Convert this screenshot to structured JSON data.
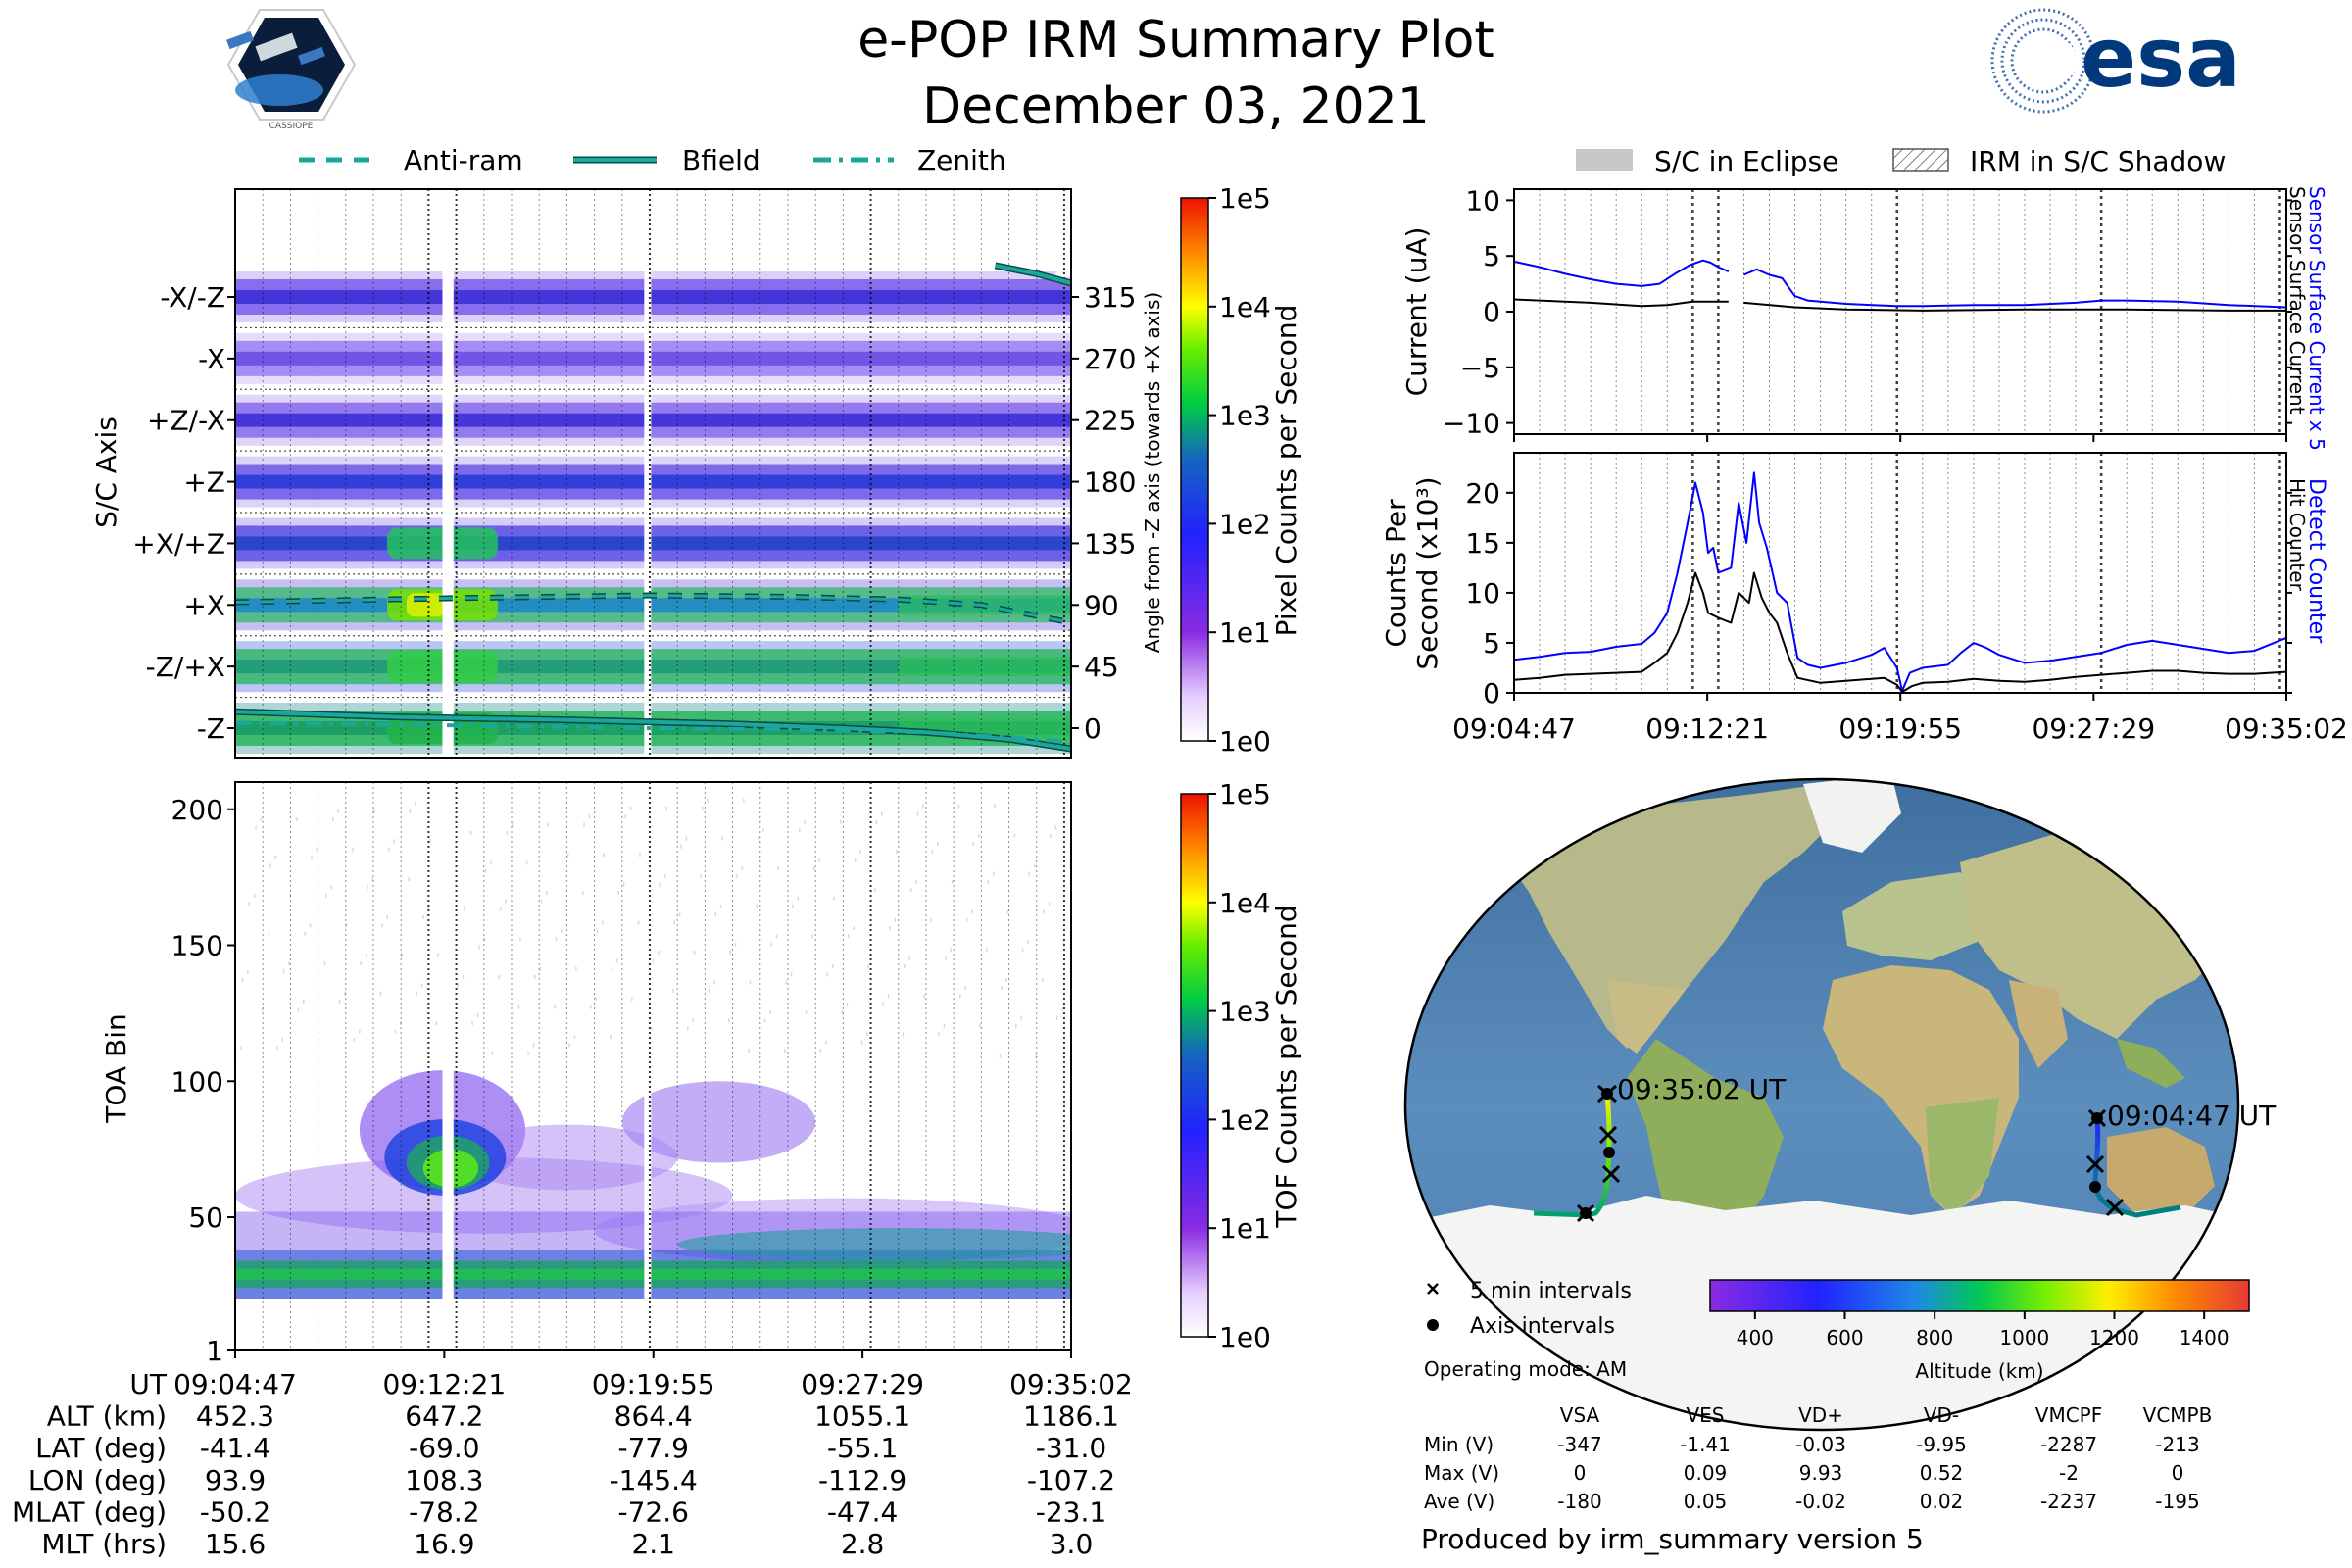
{
  "header": {
    "title": "e-POP IRM Summary Plot",
    "date": "December 03, 2021",
    "esa_logo_text": "esa",
    "mission_logo_text": "CASSIOPE"
  },
  "colors": {
    "anti_ram": "#1aa79c",
    "bfield": "#1aa79c",
    "zenith": "#1aa79c",
    "sensor_current": "#0000ff",
    "hit_counter": "#000000",
    "eclipse": "#c8c8c8"
  },
  "top_legend": [
    {
      "label": "Anti-ram",
      "style": "dashed"
    },
    {
      "label": "Bfield",
      "style": "solid"
    },
    {
      "label": "Zenith",
      "style": "dashdot"
    }
  ],
  "right_legend": [
    {
      "label": "S/C in Eclipse",
      "style": "solid-gray"
    },
    {
      "label": "IRM in S/C Shadow",
      "style": "hatched"
    }
  ],
  "time_ticks": [
    "09:04:47",
    "09:12:21",
    "09:19:55",
    "09:27:29",
    "09:35:02"
  ],
  "chart_data": [
    {
      "id": "pixel",
      "type": "heatmap",
      "ylabel": "S/C Axis",
      "ylabel_right": "Angle from -Z axis (towards +X axis)",
      "axis_labels": [
        "-X/-Z",
        "-X",
        "+Z/-X",
        "+Z",
        "+X/+Z",
        "+X",
        "-Z/+X",
        "-Z"
      ],
      "angle_ticks": [
        "315",
        "270",
        "225",
        "180",
        "135",
        "90",
        "45",
        "0"
      ],
      "colorbar": {
        "label": "Pixel Counts per Second",
        "ticks": [
          "1e5",
          "1e4",
          "1e3",
          "1e2",
          "1e1",
          "1e0"
        ]
      },
      "anti_ram_deg": [
        [
          0,
          92
        ],
        [
          8,
          95
        ],
        [
          15,
          97
        ],
        [
          20,
          96
        ],
        [
          24,
          94
        ],
        [
          27,
          90
        ],
        [
          30,
          78
        ],
        [
          30.25,
          72
        ]
      ],
      "bfield_deg": [
        [
          0,
          12
        ],
        [
          6,
          8
        ],
        [
          12,
          6
        ],
        [
          18,
          3
        ],
        [
          22,
          0
        ],
        [
          25,
          -3
        ],
        [
          28,
          -8
        ],
        [
          30.25,
          -15
        ]
      ],
      "zenith_deg": [
        [
          0,
          4
        ],
        [
          8,
          2
        ],
        [
          15,
          0
        ],
        [
          20,
          -1
        ],
        [
          25,
          -3
        ],
        [
          29,
          -8
        ],
        [
          30.25,
          -10
        ]
      ],
      "bfield_upper_deg": [
        [
          27.5,
          338
        ],
        [
          29,
          332
        ],
        [
          30.25,
          325
        ]
      ]
    },
    {
      "id": "toa",
      "type": "heatmap",
      "ylabel": "TOA Bin",
      "ylim": [
        1,
        210
      ],
      "yticks": [
        "200",
        "150",
        "100",
        "50",
        "1"
      ],
      "colorbar": {
        "label": "TOF Counts per Second",
        "ticks": [
          "1e5",
          "1e4",
          "1e3",
          "1e2",
          "1e1",
          "1e0"
        ]
      }
    },
    {
      "id": "current",
      "type": "line",
      "ylabel": "Current (uA)",
      "ylim": [
        -11,
        11
      ],
      "yticks": [
        "10",
        "5",
        "0",
        "−5",
        "−10"
      ],
      "right_labels": [
        "Sensor Surface Current x 5",
        "Sensor Surface Current"
      ],
      "series": [
        {
          "name": "Sensor Surface Current x 5",
          "points": [
            [
              0,
              4.5
            ],
            [
              1,
              4.0
            ],
            [
              2,
              3.4
            ],
            [
              3,
              2.9
            ],
            [
              4,
              2.5
            ],
            [
              5,
              2.3
            ],
            [
              5.7,
              2.5
            ],
            [
              6.3,
              3.4
            ],
            [
              6.9,
              4.2
            ],
            [
              7.4,
              4.6
            ],
            [
              7.7,
              4.4
            ],
            [
              8.0,
              4.0
            ],
            [
              8.4,
              3.6
            ],
            [
              8.6,
              null
            ],
            [
              9.0,
              3.3
            ],
            [
              9.5,
              3.8
            ],
            [
              10.0,
              3.3
            ],
            [
              10.5,
              3.0
            ],
            [
              11.0,
              1.4
            ],
            [
              11.5,
              1.0
            ],
            [
              13,
              0.7
            ],
            [
              15,
              0.5
            ],
            [
              16,
              0.5
            ],
            [
              18,
              0.6
            ],
            [
              20,
              0.6
            ],
            [
              22,
              0.8
            ],
            [
              23,
              1.0
            ],
            [
              24,
              1.0
            ],
            [
              26,
              0.9
            ],
            [
              28,
              0.6
            ],
            [
              30.25,
              0.4
            ]
          ]
        },
        {
          "name": "Sensor Surface Current",
          "points": [
            [
              0,
              1.1
            ],
            [
              3,
              0.8
            ],
            [
              5,
              0.5
            ],
            [
              6,
              0.6
            ],
            [
              7,
              0.9
            ],
            [
              8.4,
              0.9
            ],
            [
              8.6,
              null
            ],
            [
              9.0,
              0.8
            ],
            [
              11,
              0.4
            ],
            [
              13,
              0.2
            ],
            [
              16,
              0.1
            ],
            [
              20,
              0.2
            ],
            [
              24,
              0.2
            ],
            [
              28,
              0.1
            ],
            [
              30.25,
              0.1
            ]
          ]
        }
      ]
    },
    {
      "id": "counts",
      "type": "line",
      "ylabel_line1": "Counts Per",
      "ylabel_line2": "Second (x10³)",
      "ylim": [
        0,
        24
      ],
      "yticks": [
        "20",
        "15",
        "10",
        "5",
        "0"
      ],
      "right_labels": [
        "Detect Counter",
        "Hit Counter"
      ],
      "series": [
        {
          "name": "Detect Counter",
          "points": [
            [
              0,
              3.3
            ],
            [
              1,
              3.6
            ],
            [
              2,
              4.0
            ],
            [
              3,
              4.1
            ],
            [
              4,
              4.6
            ],
            [
              5,
              4.9
            ],
            [
              5.5,
              6.0
            ],
            [
              6.0,
              8.0
            ],
            [
              6.4,
              12.0
            ],
            [
              6.8,
              17.0
            ],
            [
              7.1,
              21.0
            ],
            [
              7.4,
              18.0
            ],
            [
              7.6,
              14.0
            ],
            [
              7.8,
              14.5
            ],
            [
              8.0,
              12.0
            ],
            [
              8.5,
              12.5
            ],
            [
              8.8,
              19.0
            ],
            [
              9.1,
              15.0
            ],
            [
              9.4,
              22.0
            ],
            [
              9.6,
              17.0
            ],
            [
              9.9,
              14.5
            ],
            [
              10.3,
              10.0
            ],
            [
              10.7,
              9.0
            ],
            [
              11.1,
              3.5
            ],
            [
              11.5,
              2.8
            ],
            [
              12.0,
              2.5
            ],
            [
              13.0,
              3.0
            ],
            [
              14.0,
              3.8
            ],
            [
              14.5,
              4.5
            ],
            [
              15.0,
              2.5
            ],
            [
              15.2,
              0.2
            ],
            [
              15.5,
              2.0
            ],
            [
              16.0,
              2.5
            ],
            [
              17.0,
              2.8
            ],
            [
              17.5,
              4.0
            ],
            [
              18.0,
              5.0
            ],
            [
              18.5,
              4.5
            ],
            [
              19.0,
              3.8
            ],
            [
              20,
              3.0
            ],
            [
              21,
              3.2
            ],
            [
              22,
              3.6
            ],
            [
              23,
              4.0
            ],
            [
              24,
              4.8
            ],
            [
              25,
              5.2
            ],
            [
              26,
              4.8
            ],
            [
              27,
              4.4
            ],
            [
              28,
              4.0
            ],
            [
              29,
              4.2
            ],
            [
              30.25,
              5.5
            ]
          ]
        },
        {
          "name": "Hit Counter",
          "points": [
            [
              0,
              1.3
            ],
            [
              1,
              1.5
            ],
            [
              2,
              1.8
            ],
            [
              3,
              1.9
            ],
            [
              4,
              2.0
            ],
            [
              5,
              2.1
            ],
            [
              5.5,
              3.0
            ],
            [
              6.0,
              4.0
            ],
            [
              6.4,
              6.0
            ],
            [
              6.8,
              9.0
            ],
            [
              7.1,
              12.0
            ],
            [
              7.4,
              10.0
            ],
            [
              7.6,
              8.0
            ],
            [
              8.0,
              7.5
            ],
            [
              8.5,
              7.0
            ],
            [
              8.8,
              10.0
            ],
            [
              9.2,
              9.0
            ],
            [
              9.4,
              12.0
            ],
            [
              9.7,
              9.5
            ],
            [
              10.0,
              8.0
            ],
            [
              10.3,
              7.0
            ],
            [
              10.7,
              4.0
            ],
            [
              11.1,
              1.5
            ],
            [
              12,
              1.0
            ],
            [
              13,
              1.2
            ],
            [
              14,
              1.4
            ],
            [
              14.5,
              1.5
            ],
            [
              15,
              0.8
            ],
            [
              15.2,
              0.1
            ],
            [
              15.6,
              0.7
            ],
            [
              16,
              1.0
            ],
            [
              17,
              1.1
            ],
            [
              18,
              1.4
            ],
            [
              19,
              1.2
            ],
            [
              20,
              1.1
            ],
            [
              21,
              1.3
            ],
            [
              22,
              1.6
            ],
            [
              23,
              1.8
            ],
            [
              24,
              2.0
            ],
            [
              25,
              2.2
            ],
            [
              26,
              2.2
            ],
            [
              27,
              2.0
            ],
            [
              28,
              1.9
            ],
            [
              29,
              1.9
            ],
            [
              30.25,
              2.1
            ]
          ]
        }
      ]
    }
  ],
  "orbit_table": {
    "rows": [
      {
        "label": "UT",
        "values": [
          "09:04:47",
          "09:12:21",
          "09:19:55",
          "09:27:29",
          "09:35:02"
        ]
      },
      {
        "label": "ALT (km)",
        "values": [
          "452.3",
          "647.2",
          "864.4",
          "1055.1",
          "1186.1"
        ]
      },
      {
        "label": "LAT (deg)",
        "values": [
          "-41.4",
          "-69.0",
          "-77.9",
          "-55.1",
          "-31.0"
        ]
      },
      {
        "label": "LON (deg)",
        "values": [
          "93.9",
          "108.3",
          "-145.4",
          "-112.9",
          "-107.2"
        ]
      },
      {
        "label": "MLAT (deg)",
        "values": [
          "-50.2",
          "-78.2",
          "-72.6",
          "-47.4",
          "-23.1"
        ]
      },
      {
        "label": "MLT (hrs)",
        "values": [
          "15.6",
          "16.9",
          "2.1",
          "2.8",
          "3.0"
        ]
      }
    ]
  },
  "map": {
    "start_label": "09:04:47 UT",
    "end_label": "09:35:02 UT",
    "legend_5min": "5 min intervals",
    "legend_axis": "Axis intervals",
    "altitude_label": "Altitude (km)",
    "altitude_ticks": [
      "400",
      "600",
      "800",
      "1000",
      "1200",
      "1400"
    ]
  },
  "operating_mode": "Operating mode: AM",
  "voltage_table": {
    "columns": [
      "VSA",
      "VES",
      "VD+",
      "VD-",
      "VMCPF",
      "VCMPB"
    ],
    "rows": [
      {
        "label": "Min (V)",
        "values": [
          "-347",
          "-1.41",
          "-0.03",
          "-9.95",
          "-2287",
          "-213"
        ]
      },
      {
        "label": "Max (V)",
        "values": [
          "0",
          "0.09",
          "9.93",
          "0.52",
          "-2",
          "0"
        ]
      },
      {
        "label": "Ave (V)",
        "values": [
          "-180",
          "0.05",
          "-0.02",
          "0.02",
          "-2237",
          "-195"
        ]
      }
    ]
  },
  "footer": "Produced by irm_summary version 5"
}
